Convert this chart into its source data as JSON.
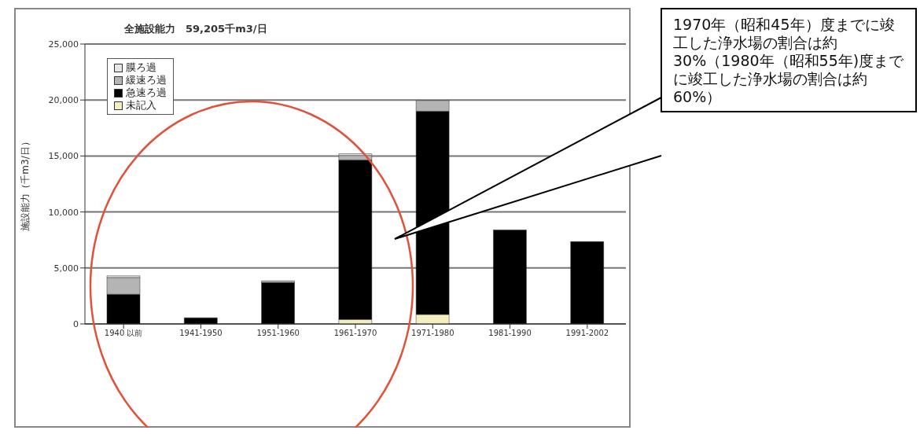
{
  "chart_data": {
    "type": "bar",
    "stacked": true,
    "title": "全施設能力　59,205千m3/日",
    "ylabel": "施設能力（千m3/日）",
    "categories": [
      "1940 以前",
      "1941-1950",
      "1951-1960",
      "1961-1970",
      "1971-1980",
      "1981-1990",
      "1991-2002"
    ],
    "series": [
      {
        "name": "未記入",
        "color": "#f3efc0",
        "values": [
          0,
          0,
          0,
          400,
          850,
          0,
          0
        ]
      },
      {
        "name": "急速ろ過",
        "color": "#000000",
        "values": [
          2650,
          550,
          3700,
          14250,
          18150,
          8400,
          7350
        ]
      },
      {
        "name": "緩速ろ過",
        "color": "#b4b4b4",
        "values": [
          1500,
          0,
          150,
          400,
          950,
          0,
          0
        ]
      },
      {
        "name": "膜ろ過",
        "color": "#e6e6e6",
        "values": [
          150,
          0,
          0,
          150,
          0,
          0,
          0
        ]
      }
    ],
    "ylim": [
      0,
      25000
    ],
    "yticks": [
      {
        "value": 0,
        "label": "0"
      },
      {
        "value": 5000,
        "label": "5,000"
      },
      {
        "value": 10000,
        "label": "10,000"
      },
      {
        "value": 15000,
        "label": "15,000"
      },
      {
        "value": 20000,
        "label": "20,000"
      },
      {
        "value": 25000,
        "label": "25,000"
      }
    ],
    "grid": "y",
    "legend": "top left",
    "annotations": [
      "1970年（昭和45年）度までに竣工した浄水場の割合は約30%（1980年（昭和55年)度までに竣工した浄水場の割合は約60%）"
    ]
  }
}
